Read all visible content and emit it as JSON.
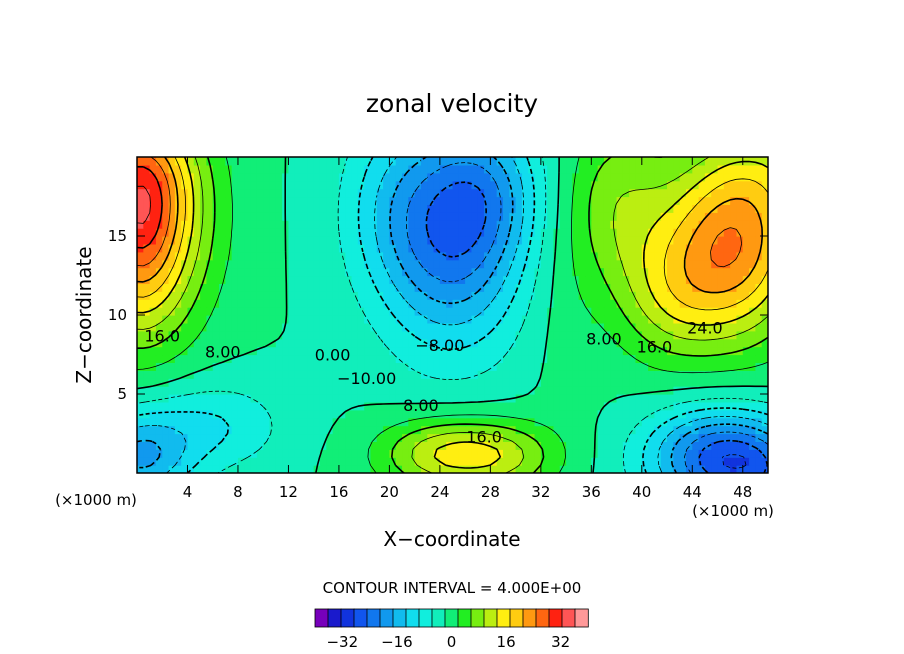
{
  "chart_data": {
    "type": "heatmap",
    "title": "zonal velocity",
    "xlabel": "X−coordinate",
    "ylabel": "Z−coordinate",
    "x_unit": "(×1000 m)",
    "x_ticks": [
      4,
      8,
      12,
      16,
      20,
      24,
      28,
      32,
      36,
      40,
      44,
      48
    ],
    "y_ticks": [
      5,
      10,
      15
    ],
    "xlim": [
      0,
      50
    ],
    "ylim": [
      0,
      20
    ],
    "contour_interval_label": "CONTOUR INTERVAL = 4.000E+00",
    "contour_interval": 4,
    "contour_labels": [
      {
        "text": "16.0",
        "x": 2.0,
        "y": 8.7
      },
      {
        "text": "8.00",
        "x": 6.8,
        "y": 7.7
      },
      {
        "text": "0.00",
        "x": 15.5,
        "y": 7.5
      },
      {
        "text": "−10.00",
        "x": 18.2,
        "y": 6.0
      },
      {
        "text": "−8.00",
        "x": 24.0,
        "y": 8.1
      },
      {
        "text": "8.00",
        "x": 22.5,
        "y": 4.3
      },
      {
        "text": "16.0",
        "x": 27.5,
        "y": 2.3
      },
      {
        "text": "8.00",
        "x": 37.0,
        "y": 8.5
      },
      {
        "text": "16.0",
        "x": 41.0,
        "y": 8.0
      },
      {
        "text": "24.0",
        "x": 45.0,
        "y": 9.2
      }
    ],
    "colorbar": {
      "levels": [
        -40,
        -36,
        -32,
        -28,
        -24,
        -20,
        -16,
        -12,
        -8,
        -4,
        0,
        4,
        8,
        12,
        16,
        20,
        24,
        28,
        32,
        36,
        40
      ],
      "tick_labels": [
        "−32",
        "−16",
        "0",
        "16",
        "32"
      ],
      "tick_values": [
        -32,
        -16,
        0,
        16,
        32
      ],
      "colors": [
        "#7700bb",
        "#1a1acc",
        "#1133dd",
        "#1155ee",
        "#1177ee",
        "#1199ee",
        "#11bbee",
        "#11ddee",
        "#11eedd",
        "#11eebb",
        "#11ee77",
        "#22ee22",
        "#77ee11",
        "#bbee11",
        "#ffee11",
        "#ffcc11",
        "#ff9911",
        "#ff6611",
        "#ff2211",
        "#ff5555",
        "#ff9999"
      ]
    },
    "blobs": [
      {
        "x": 0,
        "y": 15,
        "v": 26,
        "sx": 2.8,
        "sy": 4.5
      },
      {
        "x": 0,
        "y": 19,
        "v": 14,
        "sx": 3,
        "sy": 3
      },
      {
        "x": 4,
        "y": 16,
        "v": 6,
        "sx": 3,
        "sy": 5
      },
      {
        "x": 47,
        "y": 14,
        "v": 26,
        "sx": 4,
        "sy": 4
      },
      {
        "x": 50,
        "y": 19,
        "v": 8,
        "sx": 4,
        "sy": 3
      },
      {
        "x": 38,
        "y": 17,
        "v": 10,
        "sx": 3,
        "sy": 4
      },
      {
        "x": 42,
        "y": 11,
        "v": 8,
        "sx": 3,
        "sy": 3
      },
      {
        "x": 25,
        "y": 15,
        "v": -22,
        "sx": 4,
        "sy": 5
      },
      {
        "x": 20,
        "y": 17,
        "v": -6,
        "sx": 3,
        "sy": 4
      },
      {
        "x": 28,
        "y": 18,
        "v": -8,
        "sx": 3,
        "sy": 3
      },
      {
        "x": 25,
        "y": 1.2,
        "v": 17,
        "sx": 4,
        "sy": 1.6
      },
      {
        "x": 30,
        "y": 1,
        "v": 6,
        "sx": 3,
        "sy": 1.6
      },
      {
        "x": 46,
        "y": 1,
        "v": -24,
        "sx": 4,
        "sy": 2.2
      },
      {
        "x": 50,
        "y": 0,
        "v": -10,
        "sx": 3,
        "sy": 2
      },
      {
        "x": 0,
        "y": 1,
        "v": -16,
        "sx": 3,
        "sy": 2
      },
      {
        "x": 6,
        "y": 3,
        "v": -8,
        "sx": 4,
        "sy": 2
      },
      {
        "x": 34,
        "y": 10,
        "v": 2,
        "sx": 2,
        "sy": 5
      }
    ]
  }
}
